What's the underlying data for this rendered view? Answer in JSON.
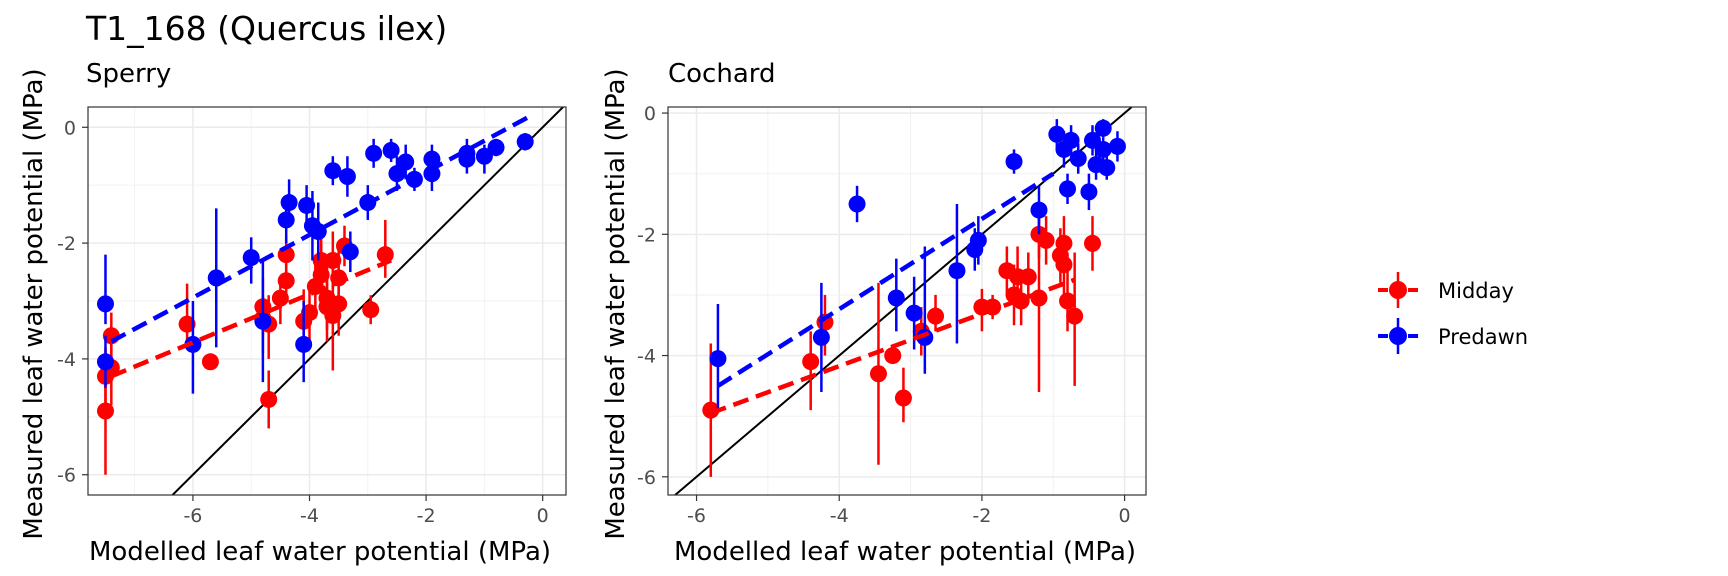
{
  "title": "T1_168 (Quercus ilex)",
  "legend": {
    "items": [
      {
        "label": "Midday",
        "color": "#ff0000"
      },
      {
        "label": "Predawn",
        "color": "#0000ff"
      }
    ]
  },
  "chart_data": [
    {
      "type": "scatter",
      "subtitle": "Sperry",
      "xlabel": "Modelled leaf water potential (MPa)",
      "ylabel": "Measured leaf water potential (MPa)",
      "xlim": [
        -7.8,
        0.4
      ],
      "ylim": [
        -6.35,
        0.35
      ],
      "xticks": [
        -6,
        -4,
        -2,
        0
      ],
      "yticks": [
        -6,
        -4,
        -2,
        0
      ],
      "grid": true,
      "identity_line": true,
      "series": [
        {
          "name": "Midday",
          "color": "#ff0000",
          "points": [
            {
              "x": -7.5,
              "y": -4.9,
              "lo": -6.0,
              "hi": -4.3
            },
            {
              "x": -7.5,
              "y": -4.3,
              "lo": -5.0,
              "hi": -3.8
            },
            {
              "x": -7.4,
              "y": -4.15,
              "lo": -4.8,
              "hi": -3.7
            },
            {
              "x": -7.4,
              "y": -3.6,
              "lo": -4.0,
              "hi": -3.2
            },
            {
              "x": -6.1,
              "y": -3.4,
              "lo": -3.8,
              "hi": -2.7
            },
            {
              "x": -5.7,
              "y": -4.05,
              "lo": -4.1,
              "hi": -4.0
            },
            {
              "x": -4.8,
              "y": -3.1,
              "lo": -3.6,
              "hi": -2.6
            },
            {
              "x": -4.8,
              "y": -3.3,
              "lo": -3.9,
              "hi": -2.9
            },
            {
              "x": -4.7,
              "y": -3.4,
              "lo": -4.0,
              "hi": -2.9
            },
            {
              "x": -4.7,
              "y": -4.7,
              "lo": -5.2,
              "hi": -4.2
            },
            {
              "x": -4.5,
              "y": -2.95,
              "lo": -3.4,
              "hi": -2.6
            },
            {
              "x": -4.4,
              "y": -2.65,
              "lo": -3.0,
              "hi": -2.1
            },
            {
              "x": -4.4,
              "y": -2.2,
              "lo": -2.5,
              "hi": -1.9
            },
            {
              "x": -4.1,
              "y": -3.35,
              "lo": -3.9,
              "hi": -2.8
            },
            {
              "x": -4.0,
              "y": -3.2,
              "lo": -3.7,
              "hi": -2.7
            },
            {
              "x": -3.9,
              "y": -2.75,
              "lo": -3.3,
              "hi": -2.2
            },
            {
              "x": -3.8,
              "y": -2.3,
              "lo": -2.8,
              "hi": -1.8
            },
            {
              "x": -3.8,
              "y": -2.55,
              "lo": -3.1,
              "hi": -2.0
            },
            {
              "x": -3.7,
              "y": -3.1,
              "lo": -3.7,
              "hi": -2.6
            },
            {
              "x": -3.7,
              "y": -2.95,
              "lo": -3.5,
              "hi": -2.4
            },
            {
              "x": -3.6,
              "y": -3.25,
              "lo": -4.2,
              "hi": -2.3
            },
            {
              "x": -3.6,
              "y": -2.3,
              "lo": -2.8,
              "hi": -1.8
            },
            {
              "x": -3.5,
              "y": -2.6,
              "lo": -3.1,
              "hi": -2.1
            },
            {
              "x": -3.5,
              "y": -3.05,
              "lo": -3.6,
              "hi": -2.5
            },
            {
              "x": -3.4,
              "y": -2.05,
              "lo": -2.4,
              "hi": -1.7
            },
            {
              "x": -2.95,
              "y": -3.15,
              "lo": -3.4,
              "hi": -2.9
            },
            {
              "x": -2.7,
              "y": -2.2,
              "lo": -2.6,
              "hi": -1.6
            }
          ]
        },
        {
          "name": "Predawn",
          "color": "#0000ff",
          "points": [
            {
              "x": -7.5,
              "y": -3.05,
              "lo": -3.4,
              "hi": -2.2
            },
            {
              "x": -7.5,
              "y": -4.05,
              "lo": -4.5,
              "hi": -3.6
            },
            {
              "x": -6.0,
              "y": -3.75,
              "lo": -4.6,
              "hi": -3.0
            },
            {
              "x": -5.6,
              "y": -2.6,
              "lo": -3.8,
              "hi": -1.4
            },
            {
              "x": -5.0,
              "y": -2.25,
              "lo": -2.7,
              "hi": -1.9
            },
            {
              "x": -4.8,
              "y": -3.35,
              "lo": -4.4,
              "hi": -2.3
            },
            {
              "x": -4.4,
              "y": -1.6,
              "lo": -2.0,
              "hi": -1.2
            },
            {
              "x": -4.35,
              "y": -1.3,
              "lo": -1.6,
              "hi": -0.9
            },
            {
              "x": -4.1,
              "y": -3.75,
              "lo": -4.4,
              "hi": -3.0
            },
            {
              "x": -4.05,
              "y": -1.35,
              "lo": -1.7,
              "hi": -1.0
            },
            {
              "x": -3.95,
              "y": -1.7,
              "lo": -2.3,
              "hi": -1.1
            },
            {
              "x": -3.85,
              "y": -1.8,
              "lo": -2.3,
              "hi": -1.3
            },
            {
              "x": -3.6,
              "y": -0.75,
              "lo": -1.0,
              "hi": -0.5
            },
            {
              "x": -3.35,
              "y": -0.85,
              "lo": -1.2,
              "hi": -0.5
            },
            {
              "x": -3.3,
              "y": -2.15,
              "lo": -2.5,
              "hi": -1.8
            },
            {
              "x": -3.0,
              "y": -1.3,
              "lo": -1.6,
              "hi": -1.0
            },
            {
              "x": -2.9,
              "y": -0.45,
              "lo": -0.7,
              "hi": -0.2
            },
            {
              "x": -2.6,
              "y": -0.4,
              "lo": -0.6,
              "hi": -0.2
            },
            {
              "x": -2.5,
              "y": -0.8,
              "lo": -1.1,
              "hi": -0.5
            },
            {
              "x": -2.35,
              "y": -0.6,
              "lo": -0.9,
              "hi": -0.3
            },
            {
              "x": -2.2,
              "y": -0.9,
              "lo": -1.1,
              "hi": -0.7
            },
            {
              "x": -1.9,
              "y": -0.55,
              "lo": -0.8,
              "hi": -0.3
            },
            {
              "x": -1.9,
              "y": -0.8,
              "lo": -1.1,
              "hi": -0.5
            },
            {
              "x": -1.3,
              "y": -0.45,
              "lo": -0.7,
              "hi": -0.2
            },
            {
              "x": -1.3,
              "y": -0.55,
              "lo": -0.8,
              "hi": -0.3
            },
            {
              "x": -1.0,
              "y": -0.5,
              "lo": -0.8,
              "hi": -0.3
            },
            {
              "x": -0.8,
              "y": -0.35,
              "lo": -0.5,
              "hi": -0.2
            },
            {
              "x": -0.3,
              "y": -0.25,
              "lo": -0.4,
              "hi": -0.1
            }
          ]
        }
      ],
      "trend_lines": [
        {
          "name": "Midday",
          "color": "#ff0000",
          "x": [
            -7.4,
            -2.6
          ],
          "y": [
            -4.3,
            -2.3
          ]
        },
        {
          "name": "Predawn",
          "color": "#0000ff",
          "x": [
            -7.4,
            -0.2
          ],
          "y": [
            -3.7,
            0.2
          ]
        }
      ]
    },
    {
      "type": "scatter",
      "subtitle": "Cochard",
      "xlabel": "Modelled leaf water potential (MPa)",
      "ylabel": "Measured leaf water potential (MPa)",
      "xlim": [
        -6.4,
        0.3
      ],
      "ylim": [
        -6.3,
        0.1
      ],
      "xticks": [
        -6,
        -4,
        -2,
        0
      ],
      "yticks": [
        -6,
        -4,
        -2,
        0
      ],
      "grid": true,
      "identity_line": true,
      "series": [
        {
          "name": "Midday",
          "color": "#ff0000",
          "points": [
            {
              "x": -5.8,
              "y": -4.9,
              "lo": -6.0,
              "hi": -3.8
            },
            {
              "x": -4.4,
              "y": -4.1,
              "lo": -4.9,
              "hi": -3.6
            },
            {
              "x": -4.2,
              "y": -3.45,
              "lo": -4.0,
              "hi": -3.0
            },
            {
              "x": -3.45,
              "y": -4.3,
              "lo": -5.8,
              "hi": -2.8
            },
            {
              "x": -3.25,
              "y": -4.0,
              "lo": -4.1,
              "hi": -3.9
            },
            {
              "x": -3.1,
              "y": -4.7,
              "lo": -5.1,
              "hi": -4.2
            },
            {
              "x": -2.85,
              "y": -3.6,
              "lo": -4.0,
              "hi": -3.2
            },
            {
              "x": -2.65,
              "y": -3.35,
              "lo": -3.6,
              "hi": -3.0
            },
            {
              "x": -2.0,
              "y": -3.2,
              "lo": -3.6,
              "hi": -2.9
            },
            {
              "x": -1.85,
              "y": -3.2,
              "lo": -3.4,
              "hi": -3.0
            },
            {
              "x": -1.65,
              "y": -2.6,
              "lo": -3.0,
              "hi": -2.2
            },
            {
              "x": -1.55,
              "y": -3.0,
              "lo": -3.5,
              "hi": -2.5
            },
            {
              "x": -1.5,
              "y": -2.7,
              "lo": -3.2,
              "hi": -2.2
            },
            {
              "x": -1.45,
              "y": -3.1,
              "lo": -3.5,
              "hi": -2.7
            },
            {
              "x": -1.35,
              "y": -2.7,
              "lo": -3.1,
              "hi": -2.3
            },
            {
              "x": -1.2,
              "y": -3.05,
              "lo": -4.6,
              "hi": -1.5
            },
            {
              "x": -1.2,
              "y": -2.0,
              "lo": -2.4,
              "hi": -1.6
            },
            {
              "x": -1.1,
              "y": -2.1,
              "lo": -2.5,
              "hi": -1.7
            },
            {
              "x": -0.9,
              "y": -2.35,
              "lo": -2.8,
              "hi": -1.9
            },
            {
              "x": -0.85,
              "y": -2.15,
              "lo": -2.6,
              "hi": -1.7
            },
            {
              "x": -0.85,
              "y": -2.5,
              "lo": -3.0,
              "hi": -2.0
            },
            {
              "x": -0.8,
              "y": -3.1,
              "lo": -3.6,
              "hi": -2.6
            },
            {
              "x": -0.7,
              "y": -3.35,
              "lo": -4.5,
              "hi": -2.3
            },
            {
              "x": -0.45,
              "y": -2.15,
              "lo": -2.6,
              "hi": -1.7
            }
          ]
        },
        {
          "name": "Predawn",
          "color": "#0000ff",
          "points": [
            {
              "x": -5.7,
              "y": -4.05,
              "lo": -4.9,
              "hi": -3.15
            },
            {
              "x": -4.25,
              "y": -3.7,
              "lo": -4.6,
              "hi": -2.8
            },
            {
              "x": -3.75,
              "y": -1.5,
              "lo": -1.8,
              "hi": -1.2
            },
            {
              "x": -3.2,
              "y": -3.05,
              "lo": -3.6,
              "hi": -2.4
            },
            {
              "x": -2.95,
              "y": -3.3,
              "lo": -3.9,
              "hi": -2.7
            },
            {
              "x": -2.8,
              "y": -3.7,
              "lo": -4.3,
              "hi": -2.2
            },
            {
              "x": -2.35,
              "y": -2.6,
              "lo": -3.8,
              "hi": -1.5
            },
            {
              "x": -2.1,
              "y": -2.25,
              "lo": -2.6,
              "hi": -1.9
            },
            {
              "x": -2.05,
              "y": -2.1,
              "lo": -2.5,
              "hi": -1.7
            },
            {
              "x": -1.55,
              "y": -0.8,
              "lo": -1.0,
              "hi": -0.6
            },
            {
              "x": -1.2,
              "y": -1.6,
              "lo": -2.0,
              "hi": -1.2
            },
            {
              "x": -0.95,
              "y": -0.35,
              "lo": -0.6,
              "hi": -0.1
            },
            {
              "x": -0.85,
              "y": -0.6,
              "lo": -0.9,
              "hi": -0.3
            },
            {
              "x": -0.8,
              "y": -1.25,
              "lo": -1.5,
              "hi": -1.0
            },
            {
              "x": -0.75,
              "y": -0.45,
              "lo": -0.7,
              "hi": -0.2
            },
            {
              "x": -0.65,
              "y": -0.75,
              "lo": -1.0,
              "hi": -0.5
            },
            {
              "x": -0.5,
              "y": -1.3,
              "lo": -1.6,
              "hi": -1.0
            },
            {
              "x": -0.45,
              "y": -0.45,
              "lo": -0.7,
              "hi": -0.2
            },
            {
              "x": -0.4,
              "y": -0.85,
              "lo": -1.1,
              "hi": -0.6
            },
            {
              "x": -0.3,
              "y": -0.25,
              "lo": -0.4,
              "hi": -0.1
            },
            {
              "x": -0.3,
              "y": -0.6,
              "lo": -0.8,
              "hi": -0.4
            },
            {
              "x": -0.25,
              "y": -0.9,
              "lo": -1.1,
              "hi": -0.7
            },
            {
              "x": -0.1,
              "y": -0.55,
              "lo": -0.8,
              "hi": -0.3
            }
          ]
        }
      ],
      "trend_lines": [
        {
          "name": "Midday",
          "color": "#ff0000",
          "x": [
            -5.8,
            -0.7
          ],
          "y": [
            -4.95,
            -2.75
          ]
        },
        {
          "name": "Predawn",
          "color": "#0000ff",
          "x": [
            -5.7,
            -1.0
          ],
          "y": [
            -4.5,
            -1.0
          ]
        }
      ]
    }
  ]
}
